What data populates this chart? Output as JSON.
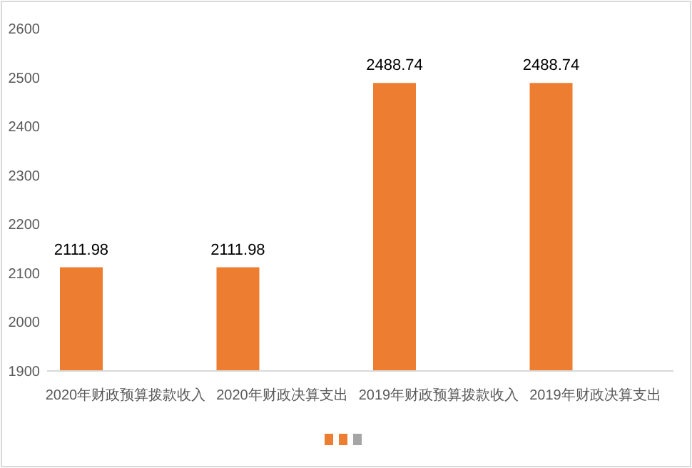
{
  "chart_data": {
    "type": "bar",
    "categories": [
      "2020年财政预算拨款收入",
      "2020年财政决算支出",
      "2019年财政预算拨款收入",
      "2019年财政决算支出"
    ],
    "series": [
      {
        "color": "#ed7d31",
        "values": [
          2111.98,
          2111.98,
          2488.74,
          2488.74
        ]
      }
    ],
    "ylim": [
      1900,
      2600
    ],
    "yticks": [
      1900,
      2000,
      2100,
      2200,
      2300,
      2400,
      2500,
      2600
    ],
    "grid": false,
    "data_labels": true
  }
}
